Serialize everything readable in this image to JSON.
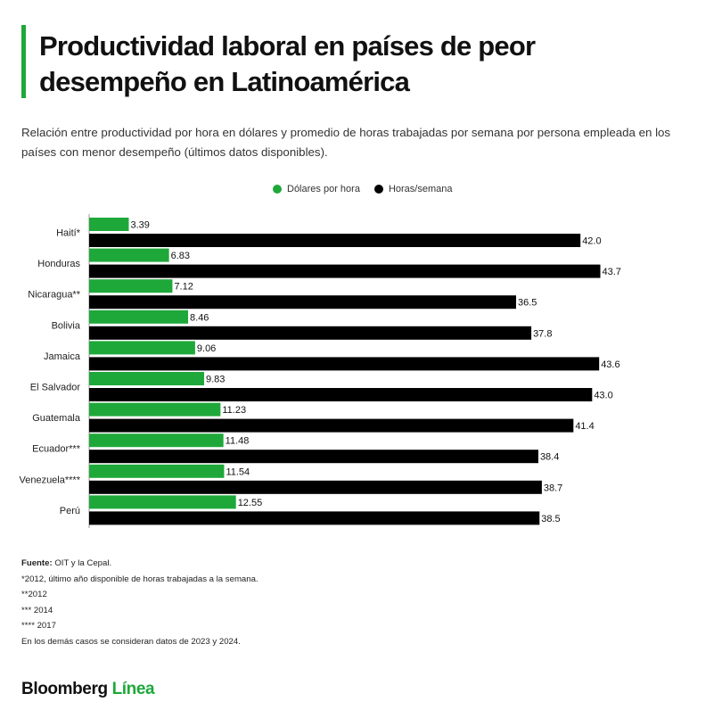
{
  "title": "Productividad laboral en países de peor desempeño en Latinoamérica",
  "subtitle": "Relación entre productividad por hora en dólares y promedio de horas trabajadas por semana por persona empleada en los países con menor desempeño (últimos datos disponibles).",
  "colors": {
    "green": "#1ea83a",
    "black": "#000000",
    "accent": "#1ea83a"
  },
  "chart_data": {
    "type": "bar",
    "orientation": "horizontal",
    "categories": [
      "Haití*",
      "Honduras",
      "Nicaragua**",
      "Bolivia",
      "Jamaica",
      "El Salvador",
      "Guatemala",
      "Ecuador***",
      "Venezuela****",
      "Perú"
    ],
    "series": [
      {
        "name": "Dólares por hora",
        "color": "#1ea83a",
        "values": [
          3.39,
          6.83,
          7.12,
          8.46,
          9.06,
          9.83,
          11.23,
          11.48,
          11.54,
          12.55
        ],
        "labels": [
          "3.39",
          "6.83",
          "7.12",
          "8.46",
          "9.06",
          "9.83",
          "11.23",
          "11.48",
          "11.54",
          "12.55"
        ]
      },
      {
        "name": "Horas/semana",
        "color": "#000000",
        "values": [
          42.0,
          43.7,
          36.5,
          37.8,
          43.6,
          43.0,
          41.4,
          38.4,
          38.7,
          38.5
        ],
        "labels": [
          "42.0",
          "43.7",
          "36.5",
          "37.8",
          "43.6",
          "43.0",
          "41.4",
          "38.4",
          "38.7",
          "38.5"
        ]
      }
    ],
    "xlim": [
      0,
      44.5
    ],
    "legend_position": "top-center",
    "grid": false
  },
  "footer": {
    "source_label": "Fuente:",
    "source_text": " OIT y la Cepal.",
    "notes": [
      "*2012, último año disponible de horas trabajadas a la semana.",
      "**2012",
      "*** 2014",
      "**** 2017",
      "En los demás casos se consideran datos de 2023 y 2024."
    ]
  },
  "brand": {
    "part1": "Bloomberg ",
    "part2": "Línea"
  }
}
